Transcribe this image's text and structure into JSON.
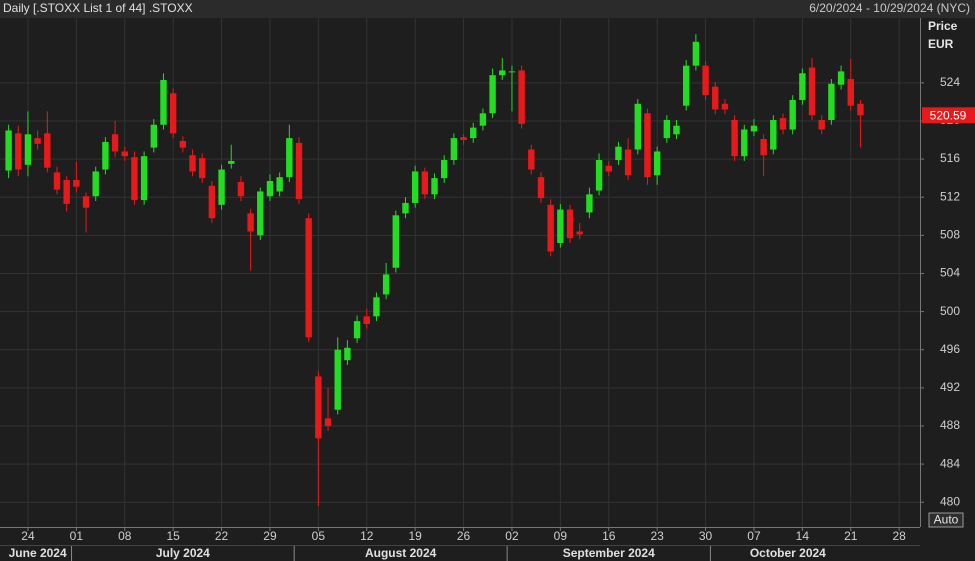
{
  "chart_data": {
    "type": "candlestick",
    "title": "Daily [.STOXX List 1 of 44] .STOXX",
    "date_range": "6/20/2024 - 10/29/2024 (NYC)",
    "y_axis_title": "Price",
    "currency": "EUR",
    "button": "Auto",
    "up_color": "#22dd22",
    "down_color": "#e8191a",
    "grid": true,
    "x": [
      "2024-06-20",
      "2024-06-21",
      "2024-06-24",
      "2024-06-25",
      "2024-06-26",
      "2024-06-27",
      "2024-06-28",
      "2024-07-01",
      "2024-07-02",
      "2024-07-03",
      "2024-07-04",
      "2024-07-05",
      "2024-07-08",
      "2024-07-09",
      "2024-07-10",
      "2024-07-11",
      "2024-07-12",
      "2024-07-15",
      "2024-07-16",
      "2024-07-17",
      "2024-07-18",
      "2024-07-19",
      "2024-07-22",
      "2024-07-23",
      "2024-07-24",
      "2024-07-25",
      "2024-07-26",
      "2024-07-29",
      "2024-07-30",
      "2024-07-31",
      "2024-08-01",
      "2024-08-02",
      "2024-08-05",
      "2024-08-06",
      "2024-08-07",
      "2024-08-08",
      "2024-08-09",
      "2024-08-12",
      "2024-08-13",
      "2024-08-14",
      "2024-08-15",
      "2024-08-16",
      "2024-08-19",
      "2024-08-20",
      "2024-08-21",
      "2024-08-22",
      "2024-08-23",
      "2024-08-26",
      "2024-08-27",
      "2024-08-28",
      "2024-08-29",
      "2024-08-30",
      "2024-09-02",
      "2024-09-03",
      "2024-09-04",
      "2024-09-05",
      "2024-09-06",
      "2024-09-09",
      "2024-09-10",
      "2024-09-11",
      "2024-09-12",
      "2024-09-13",
      "2024-09-16",
      "2024-09-17",
      "2024-09-18",
      "2024-09-19",
      "2024-09-20",
      "2024-09-23",
      "2024-09-24",
      "2024-09-25",
      "2024-09-26",
      "2024-09-27",
      "2024-09-30",
      "2024-10-01",
      "2024-10-02",
      "2024-10-03",
      "2024-10-04",
      "2024-10-07",
      "2024-10-08",
      "2024-10-09",
      "2024-10-10",
      "2024-10-11",
      "2024-10-14",
      "2024-10-15",
      "2024-10-16",
      "2024-10-17",
      "2024-10-18",
      "2024-10-21",
      "2024-10-22"
    ],
    "series": [
      {
        "name": ".STOXX",
        "open": [
          514.8,
          518.7,
          515.4,
          518.2,
          518.7,
          514.6,
          513.8,
          513.8,
          512.1,
          512.1,
          514.9,
          518.6,
          516.8,
          516.2,
          511.7,
          517.2,
          519.6,
          522.9,
          517.9,
          516.4,
          516.1,
          513.2,
          511.2,
          515.5,
          513.6,
          510.3,
          508,
          512.1,
          512.6,
          514.1,
          517.7,
          509.8,
          493.2,
          488.8,
          489.7,
          494.9,
          497.2,
          499.5,
          499.5,
          501.8,
          504.6,
          510.3,
          511.4,
          514.7,
          512.3,
          514,
          515.9,
          518.3,
          518.2,
          519.5,
          520.8,
          524.8,
          525.1,
          525.3,
          517,
          514.1,
          511.2,
          507.2,
          510.7,
          508.4,
          510.4,
          512.7,
          515.3,
          515.9,
          517,
          517,
          520.8,
          514.3,
          518.2,
          518.6,
          521.6,
          525.8,
          525.8,
          523.6,
          521.8,
          520.1,
          516.3,
          518.9,
          518.1,
          517,
          520.3,
          519.1,
          522.2,
          525.6,
          520.1,
          520.1,
          523.8,
          524.4,
          521.8
        ],
        "high": [
          519.6,
          519.5,
          521,
          519,
          521,
          515.2,
          514.2,
          515.7,
          512.5,
          515.2,
          518.3,
          520,
          517.3,
          516.8,
          516.8,
          520.2,
          525,
          523.4,
          518.4,
          517,
          516.6,
          513.7,
          515.4,
          517.5,
          514.2,
          510.8,
          513,
          514.4,
          514.6,
          519.6,
          518.3,
          510.3,
          493.8,
          492,
          497.3,
          497,
          499.6,
          500.3,
          502,
          505.1,
          510.6,
          512,
          515.3,
          515.1,
          514.5,
          516.4,
          518.7,
          518.6,
          519.8,
          521.3,
          525.5,
          526.6,
          525.8,
          525.8,
          517.5,
          514.6,
          511.8,
          511.3,
          511.2,
          509.3,
          513,
          516.6,
          515.8,
          517.8,
          518.2,
          522.3,
          521.3,
          517.3,
          520.6,
          520.1,
          526.4,
          529.1,
          526.3,
          524.1,
          522.3,
          520.6,
          519.6,
          520.2,
          518.6,
          520.6,
          520.8,
          522.7,
          525.5,
          526.6,
          520.6,
          524.4,
          525.8,
          526.5,
          522.2
        ],
        "low": [
          514,
          514.2,
          514.2,
          517,
          514.6,
          512.3,
          510.5,
          512.5,
          508.3,
          511.6,
          514.4,
          516.2,
          515.8,
          511.2,
          511.2,
          516.7,
          519.1,
          518.2,
          516.7,
          514.2,
          513.5,
          509.3,
          510.7,
          515,
          511.6,
          504.3,
          507.5,
          511.6,
          512.1,
          513.6,
          511.3,
          496.8,
          479.6,
          487.5,
          489.2,
          494.4,
          496.7,
          498.2,
          499,
          501.3,
          504.1,
          509.8,
          510.9,
          511.8,
          511.8,
          513.5,
          515.4,
          517.5,
          517.7,
          519,
          520.3,
          524.3,
          521,
          519.2,
          514.4,
          511.4,
          505.8,
          506.7,
          507.2,
          507.6,
          509.8,
          512.2,
          514.2,
          515.4,
          513.8,
          516.5,
          513.3,
          513.3,
          517.7,
          518.1,
          521.1,
          525.3,
          522.2,
          520.7,
          520.7,
          515.8,
          515.8,
          518.4,
          514.2,
          516.5,
          518.6,
          518.6,
          521.7,
          520.1,
          518.6,
          519.6,
          523.3,
          521.1,
          517.2
        ],
        "close": [
          519,
          514.9,
          518.6,
          517.6,
          515.1,
          512.8,
          511.3,
          513.1,
          510.9,
          514.7,
          517.8,
          516.8,
          516.3,
          511.7,
          516.3,
          519.6,
          524.3,
          518.7,
          517.2,
          514.7,
          514,
          509.8,
          514.9,
          515.8,
          512.1,
          508.4,
          512.6,
          513.7,
          514.1,
          518.2,
          511.8,
          497.3,
          486.7,
          488,
          496,
          496.2,
          499,
          498.7,
          501.5,
          503.9,
          510.1,
          511.4,
          514.7,
          512.3,
          514,
          515.9,
          518.2,
          518,
          519.3,
          520.8,
          524.8,
          525.3,
          525.2,
          519.7,
          514.9,
          511.9,
          506.3,
          510.7,
          507.7,
          508.1,
          512.3,
          515.9,
          514.7,
          517.3,
          514.3,
          521.8,
          514.1,
          516.8,
          520.1,
          519.5,
          525.8,
          528.3,
          522.7,
          521.2,
          521.2,
          516.3,
          519.1,
          519.5,
          516.4,
          520.1,
          519.1,
          522.2,
          525,
          520.6,
          519.1,
          523.9,
          525.2,
          521.6,
          520.59
        ]
      }
    ],
    "ylim": [
      477.4,
      530.8
    ],
    "yticks": [
      480,
      484,
      488,
      492,
      496,
      500,
      504,
      508,
      512,
      516,
      520,
      524
    ],
    "xticks": [
      {
        "value": "2024-06-24",
        "label": "24"
      },
      {
        "value": "2024-07-01",
        "label": "01"
      },
      {
        "value": "2024-07-08",
        "label": "08"
      },
      {
        "value": "2024-07-15",
        "label": "15"
      },
      {
        "value": "2024-07-22",
        "label": "22"
      },
      {
        "value": "2024-07-29",
        "label": "29"
      },
      {
        "value": "2024-08-05",
        "label": "05"
      },
      {
        "value": "2024-08-12",
        "label": "12"
      },
      {
        "value": "2024-08-19",
        "label": "19"
      },
      {
        "value": "2024-08-26",
        "label": "26"
      },
      {
        "value": "2024-09-02",
        "label": "02"
      },
      {
        "value": "2024-09-09",
        "label": "09"
      },
      {
        "value": "2024-09-16",
        "label": "16"
      },
      {
        "value": "2024-09-23",
        "label": "23"
      },
      {
        "value": "2024-09-30",
        "label": "30"
      },
      {
        "value": "2024-10-07",
        "label": "07"
      },
      {
        "value": "2024-10-14",
        "label": "14"
      },
      {
        "value": "2024-10-21",
        "label": "21"
      },
      {
        "value": "2024-10-28",
        "label": "28"
      }
    ],
    "months": [
      {
        "value": "2024-06",
        "label": "June 2024"
      },
      {
        "value": "2024-07",
        "label": "July 2024"
      },
      {
        "value": "2024-08",
        "label": "August 2024"
      },
      {
        "value": "2024-09",
        "label": "September 2024"
      },
      {
        "value": "2024-10",
        "label": "October 2024"
      }
    ]
  }
}
